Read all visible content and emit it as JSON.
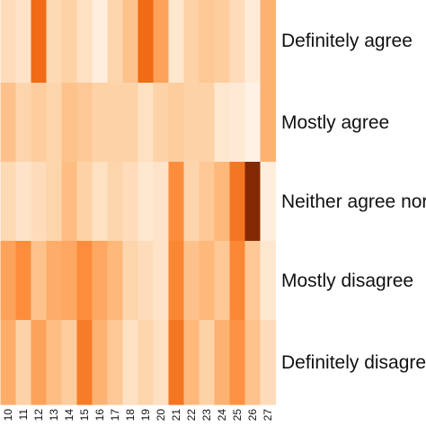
{
  "chart_data": {
    "type": "heatmap",
    "color_scale": {
      "name": "Oranges",
      "stops": [
        "#fff5eb",
        "#fee6ce",
        "#fdd0a2",
        "#fdae6b",
        "#fd8d3c",
        "#f16913",
        "#d94801",
        "#a63603",
        "#7f2704"
      ]
    },
    "x": [
      "10",
      "11",
      "12",
      "13",
      "14",
      "15",
      "16",
      "17",
      "18",
      "19",
      "20",
      "21",
      "22",
      "23",
      "24",
      "25",
      "26",
      "27"
    ],
    "y": [
      "Definitely agree",
      "Mostly agree",
      "Neither agree nor disagree",
      "Mostly disagree",
      "Definitely disagree"
    ],
    "values": [
      [
        0.18,
        0.14,
        0.62,
        0.2,
        0.24,
        0.16,
        0.06,
        0.22,
        0.3,
        0.62,
        0.42,
        0.12,
        0.24,
        0.28,
        0.26,
        0.18,
        0.08,
        0.36
      ],
      [
        0.3,
        0.22,
        0.26,
        0.22,
        0.3,
        0.28,
        0.24,
        0.24,
        0.24,
        0.16,
        0.24,
        0.26,
        0.24,
        0.24,
        0.12,
        0.1,
        0.03,
        0.36
      ],
      [
        0.2,
        0.14,
        0.18,
        0.22,
        0.32,
        0.24,
        0.16,
        0.22,
        0.18,
        0.12,
        0.14,
        0.5,
        0.22,
        0.28,
        0.34,
        0.58,
        0.98,
        0.06
      ],
      [
        0.42,
        0.5,
        0.3,
        0.38,
        0.4,
        0.5,
        0.4,
        0.34,
        0.22,
        0.18,
        0.14,
        0.52,
        0.3,
        0.34,
        0.28,
        0.52,
        0.28,
        0.12
      ],
      [
        0.38,
        0.24,
        0.42,
        0.32,
        0.26,
        0.56,
        0.36,
        0.28,
        0.16,
        0.22,
        0.16,
        0.58,
        0.34,
        0.24,
        0.36,
        0.48,
        0.3,
        0.18
      ]
    ]
  }
}
